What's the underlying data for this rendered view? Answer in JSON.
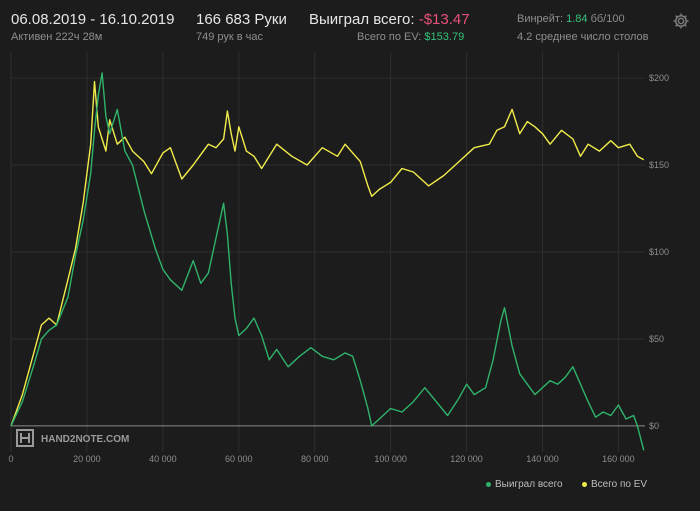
{
  "header": {
    "date_range": "06.08.2019 - 16.10.2019",
    "active_time": "Активен 222ч 28м",
    "hands": "166 683 Руки",
    "hands_per_hour": "749 рук в час",
    "won_label": "Выиграл всего:",
    "won_value": "-$13.47",
    "ev_label": "Всего по EV:",
    "ev_value": "$153.79",
    "winrate_label": "Винрейт:",
    "winrate_value": "1.84",
    "winrate_unit": "бб/100",
    "tables_text": "4.2 среднее число столов"
  },
  "watermark": "HAND2NOTE.COM",
  "colors": {
    "won_series": "#2fb36b",
    "ev_series": "#f2ec4b",
    "negative": "#e8507a",
    "positive": "#35c27a",
    "background": "#1c1c1c",
    "grid": "#2e2e2e"
  },
  "chart_data": {
    "type": "line",
    "x_ticks": [
      "0",
      "20 000",
      "40 000",
      "60 000",
      "80 000",
      "100 000",
      "120 000",
      "140 000",
      "160 000"
    ],
    "y_ticks": [
      "$200",
      "$150",
      "$100",
      "$50",
      "$0"
    ],
    "xlim": [
      0,
      167000
    ],
    "ylim": [
      -15,
      215
    ],
    "legend": [
      "Выиграл всего",
      "Всего по EV"
    ],
    "legend_position": "bottom-right",
    "series": [
      {
        "name": "Выиграл всего",
        "color": "#2fb36b",
        "x": [
          0,
          3000,
          6000,
          8000,
          10000,
          12000,
          15000,
          17000,
          19000,
          21000,
          22000,
          23000,
          24000,
          25000,
          26000,
          28000,
          30000,
          32000,
          35000,
          38000,
          40000,
          42000,
          45000,
          48000,
          50000,
          52000,
          54000,
          55000,
          56000,
          57000,
          58000,
          59000,
          60000,
          62000,
          64000,
          66000,
          68000,
          70000,
          73000,
          76000,
          79000,
          82000,
          85000,
          88000,
          90000,
          92000,
          94000,
          95000,
          97000,
          100000,
          103000,
          106000,
          109000,
          112000,
          115000,
          118000,
          120000,
          122000,
          125000,
          127000,
          129000,
          130000,
          132000,
          134000,
          136000,
          138000,
          140000,
          142000,
          144000,
          146000,
          148000,
          150000,
          152000,
          154000,
          156000,
          158000,
          160000,
          162000,
          164000,
          165000,
          166683
        ],
        "y": [
          0,
          14,
          35,
          50,
          55,
          58,
          74,
          98,
          118,
          145,
          170,
          190,
          203,
          178,
          168,
          182,
          158,
          150,
          124,
          102,
          90,
          84,
          78,
          95,
          82,
          88,
          108,
          118,
          128,
          110,
          82,
          62,
          52,
          56,
          62,
          52,
          38,
          44,
          34,
          40,
          45,
          40,
          38,
          42,
          40,
          26,
          10,
          0,
          4,
          10,
          8,
          14,
          22,
          14,
          6,
          16,
          24,
          18,
          22,
          38,
          60,
          68,
          46,
          30,
          24,
          18,
          22,
          26,
          24,
          28,
          34,
          24,
          14,
          5,
          8,
          6,
          12,
          4,
          6,
          0,
          -14
        ]
      },
      {
        "name": "Всего по EV",
        "color": "#f2ec4b",
        "x": [
          0,
          3000,
          6000,
          8000,
          10000,
          12000,
          15000,
          17000,
          19000,
          21000,
          22000,
          23000,
          24000,
          25000,
          26000,
          28000,
          30000,
          32000,
          35000,
          37000,
          40000,
          42000,
          45000,
          48000,
          50000,
          52000,
          54000,
          56000,
          57000,
          58000,
          59000,
          60000,
          62000,
          64000,
          66000,
          70000,
          74000,
          78000,
          82000,
          86000,
          88000,
          90000,
          92000,
          94000,
          95000,
          97000,
          100000,
          103000,
          106000,
          110000,
          114000,
          118000,
          122000,
          126000,
          128000,
          130000,
          132000,
          134000,
          136000,
          138000,
          140000,
          142000,
          145000,
          148000,
          150000,
          152000,
          155000,
          158000,
          160000,
          163000,
          165000,
          166683
        ],
        "y": [
          0,
          18,
          42,
          58,
          62,
          58,
          84,
          102,
          128,
          162,
          198,
          172,
          165,
          158,
          176,
          162,
          166,
          158,
          152,
          145,
          157,
          160,
          142,
          150,
          156,
          162,
          160,
          165,
          181,
          168,
          158,
          172,
          158,
          155,
          148,
          162,
          155,
          150,
          160,
          155,
          162,
          157,
          152,
          138,
          132,
          136,
          140,
          148,
          146,
          138,
          144,
          152,
          160,
          162,
          170,
          172,
          182,
          168,
          175,
          172,
          168,
          162,
          170,
          165,
          155,
          162,
          158,
          164,
          160,
          162,
          155,
          153
        ]
      }
    ]
  }
}
